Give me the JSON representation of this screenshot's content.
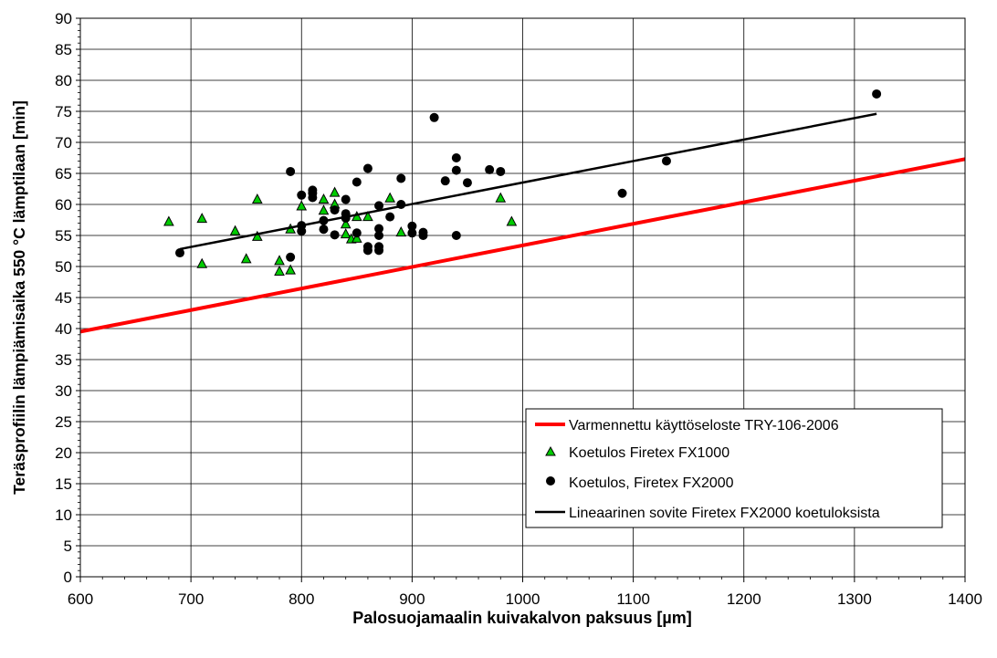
{
  "chart_data": {
    "type": "scatter",
    "title": "",
    "xlabel": "Palosuojamaalin kuivakalvon paksuus [µm]",
    "ylabel": "Teräsprofiilin lämpiämisaika 550 °C lämptilaan [min]",
    "xlim": [
      600,
      1400
    ],
    "ylim": [
      0,
      90
    ],
    "x_ticks": [
      "600",
      "700",
      "800",
      "900",
      "1000",
      "1100",
      "1200",
      "1300",
      "1400"
    ],
    "y_ticks": [
      "0",
      "5",
      "10",
      "15",
      "20",
      "25",
      "30",
      "35",
      "40",
      "45",
      "50",
      "55",
      "60",
      "65",
      "70",
      "75",
      "80",
      "85",
      "90"
    ],
    "grid": true,
    "legend_position": "bottom-right",
    "series": [
      {
        "name": "Varmennettu käyttöseloste TRY-106-2006",
        "kind": "line",
        "color": "#ff0000",
        "points": [
          [
            600,
            39.5
          ],
          [
            1400,
            67.3
          ]
        ]
      },
      {
        "name": "Koetulos Firetex FX1000",
        "kind": "scatter",
        "marker": "triangle",
        "color": "#00cc00",
        "points": [
          [
            680,
            57.2
          ],
          [
            710,
            57.7
          ],
          [
            710,
            50.4
          ],
          [
            740,
            55.7
          ],
          [
            750,
            51.2
          ],
          [
            760,
            60.8
          ],
          [
            760,
            54.8
          ],
          [
            780,
            50.9
          ],
          [
            780,
            49.2
          ],
          [
            790,
            56.0
          ],
          [
            790,
            49.4
          ],
          [
            800,
            59.7
          ],
          [
            820,
            60.8
          ],
          [
            820,
            59.0
          ],
          [
            830,
            61.9
          ],
          [
            830,
            60.0
          ],
          [
            840,
            56.8
          ],
          [
            840,
            55.2
          ],
          [
            845,
            54.4
          ],
          [
            850,
            54.5
          ],
          [
            850,
            58.0
          ],
          [
            860,
            58.0
          ],
          [
            880,
            61.0
          ],
          [
            890,
            55.5
          ],
          [
            980,
            61.0
          ],
          [
            990,
            57.2
          ]
        ]
      },
      {
        "name": "Koetulos, Firetex FX2000",
        "kind": "scatter",
        "marker": "circle",
        "color": "#000000",
        "points": [
          [
            690,
            52.2
          ],
          [
            790,
            65.3
          ],
          [
            790,
            51.5
          ],
          [
            800,
            61.5
          ],
          [
            800,
            56.6
          ],
          [
            800,
            55.7
          ],
          [
            810,
            62.3
          ],
          [
            810,
            61.8
          ],
          [
            810,
            61.1
          ],
          [
            820,
            57.4
          ],
          [
            820,
            56.0
          ],
          [
            830,
            59.1
          ],
          [
            830,
            55.1
          ],
          [
            840,
            60.8
          ],
          [
            840,
            58.5
          ],
          [
            840,
            57.8
          ],
          [
            850,
            63.6
          ],
          [
            850,
            55.4
          ],
          [
            860,
            65.8
          ],
          [
            860,
            53.2
          ],
          [
            860,
            52.6
          ],
          [
            870,
            59.8
          ],
          [
            870,
            56.1
          ],
          [
            870,
            55.0
          ],
          [
            870,
            53.2
          ],
          [
            870,
            52.6
          ],
          [
            880,
            58.0
          ],
          [
            890,
            64.2
          ],
          [
            890,
            60.0
          ],
          [
            900,
            56.5
          ],
          [
            900,
            55.4
          ],
          [
            910,
            55.5
          ],
          [
            910,
            55.0
          ],
          [
            920,
            74.0
          ],
          [
            930,
            63.8
          ],
          [
            940,
            67.5
          ],
          [
            940,
            65.5
          ],
          [
            940,
            55.0
          ],
          [
            950,
            63.5
          ],
          [
            970,
            65.6
          ],
          [
            980,
            65.3
          ],
          [
            1090,
            61.8
          ],
          [
            1130,
            67.0
          ],
          [
            1320,
            77.8
          ]
        ]
      },
      {
        "name": "Lineaarinen sovite Firetex FX2000 koetuloksista",
        "kind": "line",
        "color": "#000000",
        "points": [
          [
            690,
            52.8
          ],
          [
            1320,
            74.6
          ]
        ]
      }
    ]
  }
}
